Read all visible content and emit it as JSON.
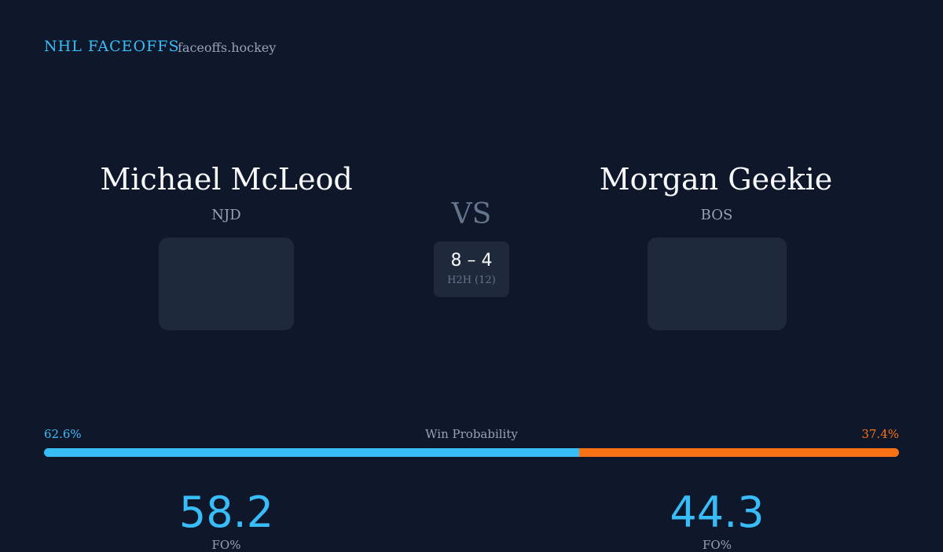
{
  "header": {
    "brand": "NHL FACEOFFS",
    "site": "faceoffs.hockey"
  },
  "players": [
    {
      "name": "Michael McLeod",
      "team": "NJD",
      "fo_pct": 58.2,
      "fo_label": "FO%"
    },
    {
      "name": "Morgan Geekie",
      "team": "BOS",
      "fo_pct": 44.3,
      "fo_label": "FO%"
    }
  ],
  "versus": "VS",
  "h2h": {
    "record": "8 – 4",
    "label": "H2H (12)"
  },
  "win_probability": {
    "title": "Win Probability",
    "values": [
      62.6,
      37.4
    ],
    "value_labels": [
      "62.6%",
      "37.4%"
    ],
    "colors": [
      "#38bdf8",
      "#f97316"
    ]
  }
}
